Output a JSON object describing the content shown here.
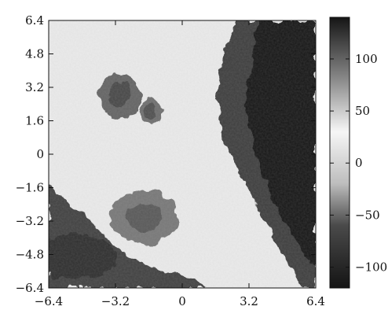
{
  "chart_data": {
    "type": "heatmap",
    "title": "",
    "xlabel": "",
    "ylabel": "",
    "xlim": [
      -6.4,
      6.4
    ],
    "ylim": [
      -6.4,
      6.4
    ],
    "x_ticks": [
      -6.4,
      -3.2,
      0,
      3.2,
      6.4
    ],
    "x_tick_labels": [
      "−6.4",
      "−3.2",
      "0",
      "3.2",
      "6.4"
    ],
    "y_ticks": [
      6.4,
      4.8,
      3.2,
      1.6,
      0,
      -1.6,
      -3.2,
      -4.8,
      -6.4
    ],
    "y_tick_labels": [
      "6.4",
      "4.8",
      "3.2",
      "1.6",
      "0",
      "−1.6",
      "−3.2",
      "−4.8",
      "−6.4"
    ],
    "colorbar": {
      "range": [
        -120,
        140
      ],
      "ticks": [
        100,
        50,
        0,
        -50,
        -100
      ],
      "tick_labels": [
        "100",
        "50",
        "0",
        "−50",
        "−100"
      ]
    },
    "color_scale": {
      "stops": [
        {
          "value": -120,
          "color": "#141414"
        },
        {
          "value": -60,
          "color": "#4a4a4a"
        },
        {
          "value": -20,
          "color": "#bdbdbd"
        },
        {
          "value": 30,
          "color": "#f6f6f6"
        },
        {
          "value": 80,
          "color": "#8a8a8a"
        },
        {
          "value": 140,
          "color": "#151515"
        }
      ]
    },
    "regions": [
      {
        "name": "dark band right",
        "x": [
          2.8,
          6.4
        ],
        "y": [
          -6.4,
          6.4
        ],
        "value": 120
      },
      {
        "name": "cluster upper-left",
        "center": [
          -3.0,
          2.8
        ],
        "value": 70
      },
      {
        "name": "cluster upper-mid",
        "center": [
          -1.5,
          2.0
        ],
        "value": 65
      },
      {
        "name": "cluster center-low",
        "center": [
          -1.8,
          -3.0
        ],
        "value": 60
      },
      {
        "name": "dark lower-left",
        "center": [
          -5.2,
          -4.9
        ],
        "value": -90
      },
      {
        "name": "background",
        "value": 20
      }
    ]
  }
}
